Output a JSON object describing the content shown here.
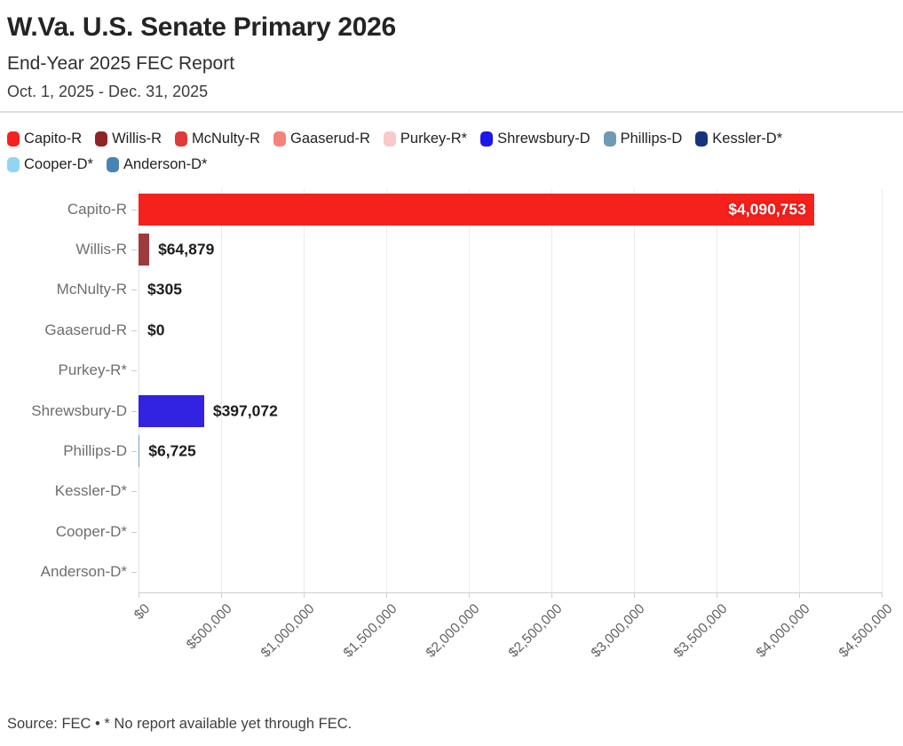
{
  "header": {
    "title": "W.Va. U.S. Senate Primary 2026",
    "subtitle": "End-Year 2025 FEC Report",
    "date_range": "Oct. 1, 2025 - Dec. 31, 2025"
  },
  "legend": {
    "items": [
      {
        "label": "Capito-R",
        "color": "#f5211d"
      },
      {
        "label": "Willis-R",
        "color": "#8f2327"
      },
      {
        "label": "McNulty-R",
        "color": "#de3c36"
      },
      {
        "label": "Gaaserud-R",
        "color": "#f5827a"
      },
      {
        "label": "Purkey-R*",
        "color": "#f9c8c8"
      },
      {
        "label": "Shrewsbury-D",
        "color": "#1d16e8"
      },
      {
        "label": "Phillips-D",
        "color": "#6f9ab5"
      },
      {
        "label": "Kessler-D*",
        "color": "#16337d"
      },
      {
        "label": "Cooper-D*",
        "color": "#92d4f2"
      },
      {
        "label": "Anderson-D*",
        "color": "#4784b4"
      }
    ]
  },
  "chart_data": {
    "type": "bar",
    "orientation": "horizontal",
    "title": "W.Va. U.S. Senate Primary 2026",
    "subtitle": "End-Year 2025 FEC Report",
    "period": "Oct. 1, 2025 - Dec. 31, 2025",
    "categories": [
      "Capito-R",
      "Willis-R",
      "McNulty-R",
      "Gaaserud-R",
      "Purkey-R*",
      "Shrewsbury-D",
      "Phillips-D",
      "Kessler-D*",
      "Cooper-D*",
      "Anderson-D*"
    ],
    "values": [
      4090753,
      64879,
      305,
      0,
      null,
      397072,
      6725,
      null,
      null,
      null
    ],
    "value_labels": [
      "$4,090,753",
      "$64,879",
      "$305",
      "$0",
      "",
      "$397,072",
      "$6,725",
      "",
      "",
      ""
    ],
    "bar_colors": [
      "#f5211d",
      "#9e3a3e",
      "#de3c36",
      "#f5827a",
      "#f9c8c8",
      "#3222e2",
      "#74a0bd",
      "#16337d",
      "#92d4f2",
      "#4784b4"
    ],
    "xlim": [
      0,
      4500000
    ],
    "x_tick_values": [
      0,
      500000,
      1000000,
      1500000,
      2000000,
      2500000,
      3000000,
      3500000,
      4000000,
      4500000
    ],
    "x_tick_labels": [
      "$0",
      "$500,000",
      "$1,000,000",
      "$1,500,000",
      "$2,000,000",
      "$2,500,000",
      "$3,000,000",
      "$3,500,000",
      "$4,000,000",
      "$4,500,000"
    ],
    "grid": true,
    "legend_position": "top",
    "inside_label_threshold_pct": 50
  },
  "footer": {
    "source": "Source: FEC • * No report available yet through FEC."
  }
}
